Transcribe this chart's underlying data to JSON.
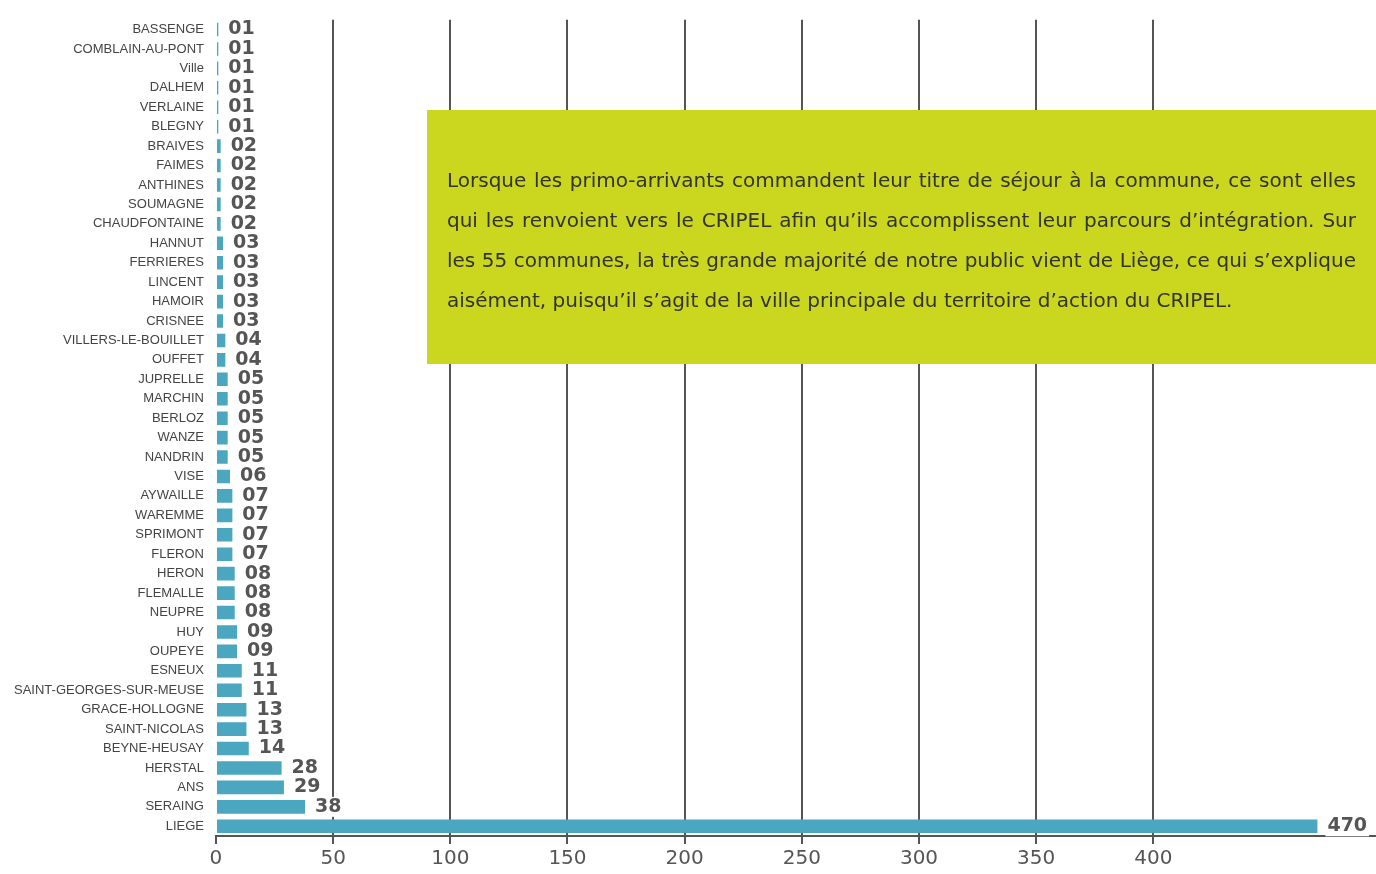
{
  "chart_data": {
    "type": "bar",
    "orientation": "horizontal",
    "categories": [
      "BASSENGE",
      "COMBLAIN-AU-PONT",
      "Ville",
      "DALHEM",
      "VERLAINE",
      "BLEGNY",
      "BRAIVES",
      "FAIMES",
      "ANTHINES",
      "SOUMAGNE",
      "CHAUDFONTAINE",
      "HANNUT",
      "FERRIERES",
      "LINCENT",
      "HAMOIR",
      "CRISNEE",
      "VILLERS-LE-BOUILLET",
      "OUFFET",
      "JUPRELLE",
      "MARCHIN",
      "BERLOZ",
      "WANZE",
      "NANDRIN",
      "VISE",
      "AYWAILLE",
      "WAREMME",
      "SPRIMONT",
      "FLERON",
      "HERON",
      "FLEMALLE",
      "NEUPRE",
      "HUY",
      "OUPEYE",
      "ESNEUX",
      "SAINT-GEORGES-SUR-MEUSE",
      "GRACE-HOLLOGNE",
      "SAINT-NICOLAS",
      "BEYNE-HEUSAY",
      "HERSTAL",
      "ANS",
      "SERAING",
      "LIEGE"
    ],
    "values": [
      1,
      1,
      1,
      1,
      1,
      1,
      2,
      2,
      2,
      2,
      2,
      3,
      3,
      3,
      3,
      3,
      4,
      4,
      5,
      5,
      5,
      5,
      5,
      6,
      7,
      7,
      7,
      7,
      8,
      8,
      8,
      9,
      9,
      11,
      11,
      13,
      13,
      14,
      28,
      29,
      38,
      470
    ],
    "value_labels": [
      "01",
      "01",
      "01",
      "01",
      "01",
      "01",
      "02",
      "02",
      "02",
      "02",
      "02",
      "03",
      "03",
      "03",
      "03",
      "03",
      "04",
      "04",
      "05",
      "05",
      "05",
      "05",
      "05",
      "06",
      "07",
      "07",
      "07",
      "07",
      "08",
      "08",
      "08",
      "09",
      "09",
      "11",
      "11",
      "13",
      "13",
      "14",
      "28",
      "29",
      "38",
      "470"
    ],
    "color": "#4ba6bf",
    "xlim": [
      0,
      495
    ],
    "xticks": [
      0,
      50,
      100,
      150,
      200,
      250,
      300,
      350,
      400
    ],
    "grid": "x",
    "legend": false,
    "annotations": [
      "Lorsque les primo-arrivants commandent leur titre de séjour à la commune, ce sont elles qui les renvoient vers le CRIPEL afin qu’ils accomplissent leur parcours d’intégration. Sur les 55 communes, la très grande majorité de notre public vient de Liège, ce qui s’explique aisément, puisqu’il s’agit de la ville principale du territoire d’action du CRIPEL."
    ]
  }
}
